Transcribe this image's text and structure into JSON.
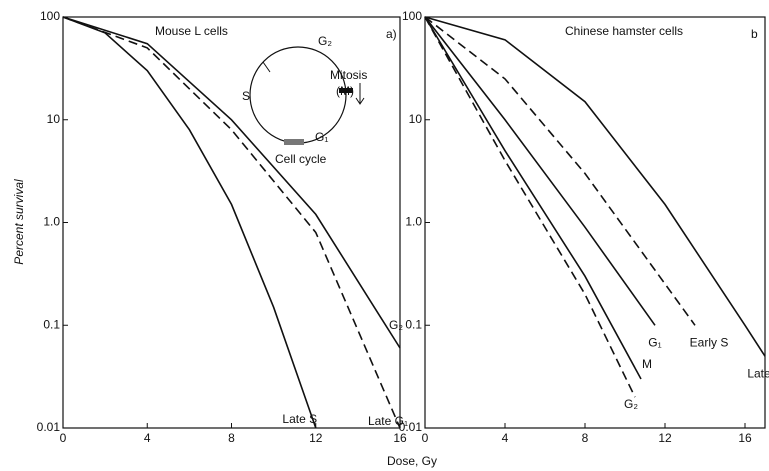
{
  "chart_data": [
    {
      "type": "line",
      "title": "Mouse L cells",
      "panel_label": "a)",
      "xlabel": "Dose, Gy",
      "ylabel": "Percent survival",
      "log_y": true,
      "xlim": [
        0,
        16
      ],
      "ylim": [
        0.01,
        100
      ],
      "xticks": [
        0,
        4,
        8,
        12,
        16
      ],
      "yticks": [
        0.01,
        0.1,
        {
          "value": 1,
          "label": "1.0"
        },
        10,
        100
      ],
      "inset_labels": [
        "G₂",
        "S",
        "Mitosis",
        "(M)",
        "G₁",
        "Cell cycle"
      ],
      "series": [
        {
          "name": "Late S",
          "color": "#111111",
          "dashed": false,
          "x": [
            0,
            2,
            4,
            6,
            8,
            10,
            12
          ],
          "values": [
            100,
            70,
            30,
            8,
            1.5,
            0.15,
            0.01
          ]
        },
        {
          "name": "Late G₁",
          "color": "#111111",
          "dashed": true,
          "x": [
            0,
            4,
            8,
            12,
            16
          ],
          "values": [
            100,
            50,
            8,
            0.8,
            0.01
          ]
        },
        {
          "name": "G₂",
          "color": "#111111",
          "dashed": false,
          "x": [
            0,
            4,
            8,
            12,
            16
          ],
          "values": [
            100,
            55,
            10,
            1.2,
            0.06
          ]
        }
      ]
    },
    {
      "type": "line",
      "title": "Chinese hamster cells",
      "panel_label": "b",
      "log_y": true,
      "xlim": [
        0,
        17
      ],
      "ylim": [
        0.01,
        100
      ],
      "xticks": [
        0,
        4,
        8,
        12,
        16
      ],
      "yticks": [
        0.01,
        0.1,
        {
          "value": 1,
          "label": "1.0"
        },
        10,
        100
      ],
      "series": [
        {
          "name": "M",
          "color": "#111111",
          "dashed": false,
          "x": [
            0,
            4,
            8,
            10.8
          ],
          "values": [
            100,
            5,
            0.3,
            0.03
          ]
        },
        {
          "name": "G₂",
          "color": "#111111",
          "dashed": true,
          "x": [
            0,
            4,
            8,
            10.5
          ],
          "values": [
            100,
            4,
            0.2,
            0.02
          ]
        },
        {
          "name": "G₁",
          "color": "#111111",
          "dashed": false,
          "x": [
            0,
            4,
            8,
            11.5
          ],
          "values": [
            100,
            10,
            0.9,
            0.1
          ]
        },
        {
          "name": "Early S",
          "color": "#111111",
          "dashed": true,
          "x": [
            0,
            4,
            8,
            13.5
          ],
          "values": [
            100,
            25,
            3,
            0.1
          ]
        },
        {
          "name": "Late",
          "color": "#111111",
          "dashed": false,
          "x": [
            0,
            4,
            8,
            12,
            16,
            17
          ],
          "values": [
            100,
            60,
            15,
            1.5,
            0.1,
            0.05
          ]
        }
      ]
    }
  ]
}
